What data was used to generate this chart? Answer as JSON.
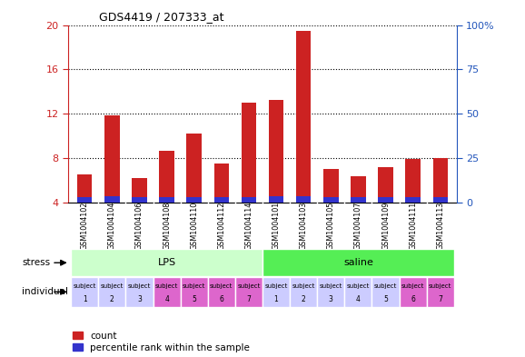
{
  "title": "GDS4419 / 207333_at",
  "samples": [
    "GSM1004102",
    "GSM1004104",
    "GSM1004106",
    "GSM1004108",
    "GSM1004110",
    "GSM1004112",
    "GSM1004114",
    "GSM1004101",
    "GSM1004103",
    "GSM1004105",
    "GSM1004107",
    "GSM1004109",
    "GSM1004111",
    "GSM1004113"
  ],
  "counts": [
    6.5,
    11.8,
    6.2,
    8.6,
    10.2,
    7.5,
    13.0,
    13.2,
    19.5,
    7.0,
    6.3,
    7.2,
    7.9,
    8.0
  ],
  "percentiles": [
    0.45,
    0.5,
    0.45,
    0.48,
    0.45,
    0.45,
    0.48,
    0.5,
    0.5,
    0.45,
    0.45,
    0.45,
    0.48,
    0.48
  ],
  "ylim_left": [
    4,
    20
  ],
  "yticks_left": [
    4,
    8,
    12,
    16,
    20
  ],
  "yticks_right_labels": [
    "0",
    "25",
    "50",
    "75",
    "100%"
  ],
  "bar_width": 0.55,
  "count_color": "#cc2222",
  "percentile_color": "#3333cc",
  "stress_groups": [
    {
      "label": "LPS",
      "start": 0,
      "end": 7,
      "color": "#ccffcc"
    },
    {
      "label": "saline",
      "start": 7,
      "end": 14,
      "color": "#55ee55"
    }
  ],
  "individual_colors": [
    "#ccccff",
    "#ccccff",
    "#ccccff",
    "#dd66cc",
    "#dd66cc",
    "#dd66cc",
    "#dd66cc",
    "#ccccff",
    "#ccccff",
    "#ccccff",
    "#ccccff",
    "#ccccff",
    "#dd66cc",
    "#dd66cc"
  ],
  "individual_labels_top": [
    "subject",
    "subject",
    "subject",
    "subject",
    "subject",
    "subject",
    "subject",
    "subject",
    "subject",
    "subject",
    "subject",
    "subject",
    "subject",
    "subject"
  ],
  "individual_labels_bot": [
    "1",
    "2",
    "3",
    "4",
    "5",
    "6",
    "7",
    "1",
    "2",
    "3",
    "4",
    "5",
    "6",
    "7"
  ],
  "stress_label": "stress",
  "individual_label": "individual",
  "legend_count": "count",
  "legend_percentile": "percentile rank within the sample",
  "plot_bg": "#ffffff",
  "tick_bg": "#cccccc",
  "base_value": 4.0
}
